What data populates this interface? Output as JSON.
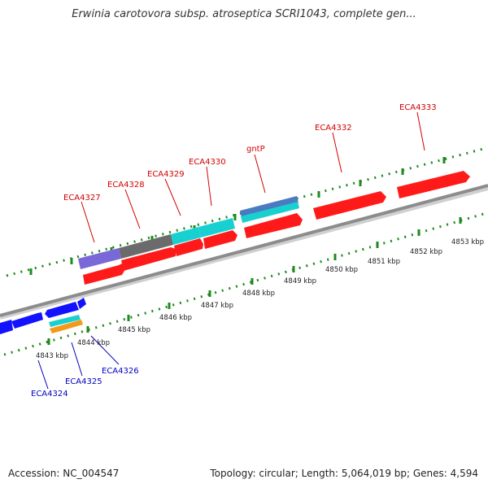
{
  "header": {
    "title": "Erwinia carotovora subsp. atroseptica SCRI1043, complete gen..."
  },
  "footer": {
    "accession": "Accession: NC_004547",
    "summary": "Topology: circular; Length: 5,064,019 bp; Genes: 4,594"
  },
  "colors": {
    "backbone": "#8c8c8c",
    "tick": "#1f8a1f",
    "forward_label": "#d40000",
    "reverse_label": "#0000c0",
    "gene_red": "#ff1a1a",
    "gene_blue": "#1212ff",
    "gene_cyan": "#19d0d0",
    "gene_slate": "#4a7ac0",
    "gene_purple": "#7a68d8",
    "gene_gray": "#6b6b6b",
    "gene_orange": "#f29a1a"
  },
  "scale_labels": [
    "4843 kbp",
    "4844 kbp",
    "4845 kbp",
    "4846 kbp",
    "4847 kbp",
    "4848 kbp",
    "4849 kbp",
    "4850 kbp",
    "4851 kbp",
    "4852 kbp",
    "4853 kbp"
  ],
  "forward_gene_labels": [
    "ECA4327",
    "ECA4328",
    "ECA4329",
    "ECA4330",
    "gntP",
    "ECA4332",
    "ECA4333"
  ],
  "reverse_gene_labels": [
    "ECA4324",
    "ECA4325",
    "ECA4326"
  ],
  "icons": {
    "gene_arrow": "arrow-shape"
  }
}
